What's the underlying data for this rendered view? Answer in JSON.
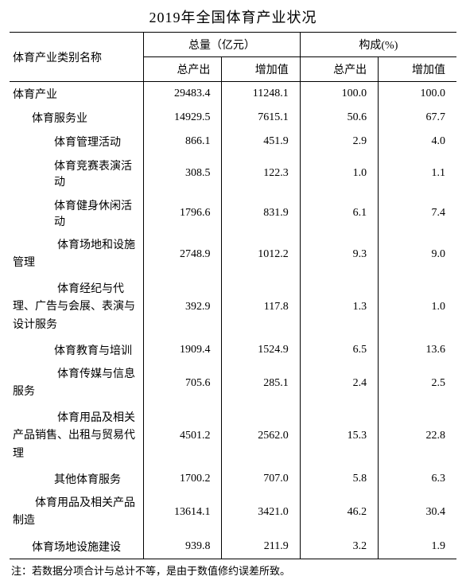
{
  "title": "2019年全国体育产业状况",
  "headers": {
    "category": "体育产业类别名称",
    "total_group": "总量（亿元）",
    "share_group": "构成(%)",
    "output": "总产出",
    "added": "增加值"
  },
  "rows": [
    {
      "name": "体育产业",
      "indent": 0,
      "output_total": "29483.4",
      "added_total": "11248.1",
      "output_share": "100.0",
      "added_share": "100.0"
    },
    {
      "name": "体育服务业",
      "indent": 1,
      "output_total": "14929.5",
      "added_total": "7615.1",
      "output_share": "50.6",
      "added_share": "67.7"
    },
    {
      "name": "体育管理活动",
      "indent": 2,
      "output_total": "866.1",
      "added_total": "451.9",
      "output_share": "2.9",
      "added_share": "4.0"
    },
    {
      "name": "体育竞赛表演活动",
      "indent": 2,
      "output_total": "308.5",
      "added_total": "122.3",
      "output_share": "1.0",
      "added_share": "1.1"
    },
    {
      "name": "体育健身休闲活动",
      "indent": 2,
      "output_total": "1796.6",
      "added_total": "831.9",
      "output_share": "6.1",
      "added_share": "7.4"
    },
    {
      "name": "　　　　体育场地和设施管理",
      "indent": 0,
      "wrap": true,
      "output_total": "2748.9",
      "added_total": "1012.2",
      "output_share": "9.3",
      "added_share": "9.0"
    },
    {
      "name": "　　　　体育经纪与代理、广告与会展、表演与设计服务",
      "indent": 0,
      "wrap": true,
      "output_total": "392.9",
      "added_total": "117.8",
      "output_share": "1.3",
      "added_share": "1.0"
    },
    {
      "name": "体育教育与培训",
      "indent": 2,
      "output_total": "1909.4",
      "added_total": "1524.9",
      "output_share": "6.5",
      "added_share": "13.6"
    },
    {
      "name": "　　　　体育传媒与信息服务",
      "indent": 0,
      "wrap": true,
      "output_total": "705.6",
      "added_total": "285.1",
      "output_share": "2.4",
      "added_share": "2.5"
    },
    {
      "name": "　　　　体育用品及相关产品销售、出租与贸易代理",
      "indent": 0,
      "wrap": true,
      "output_total": "4501.2",
      "added_total": "2562.0",
      "output_share": "15.3",
      "added_share": "22.8"
    },
    {
      "name": "其他体育服务",
      "indent": 2,
      "output_total": "1700.2",
      "added_total": "707.0",
      "output_share": "5.8",
      "added_share": "6.3"
    },
    {
      "name": "　　体育用品及相关产品制造",
      "indent": 0,
      "wrap": true,
      "output_total": "13614.1",
      "added_total": "3421.0",
      "output_share": "46.2",
      "added_share": "30.4"
    },
    {
      "name": "体育场地设施建设",
      "indent": 1,
      "output_total": "939.8",
      "added_total": "211.9",
      "output_share": "3.2",
      "added_share": "1.9"
    }
  ],
  "note": "注：若数据分项合计与总计不等，是由于数值修约误差所致。"
}
